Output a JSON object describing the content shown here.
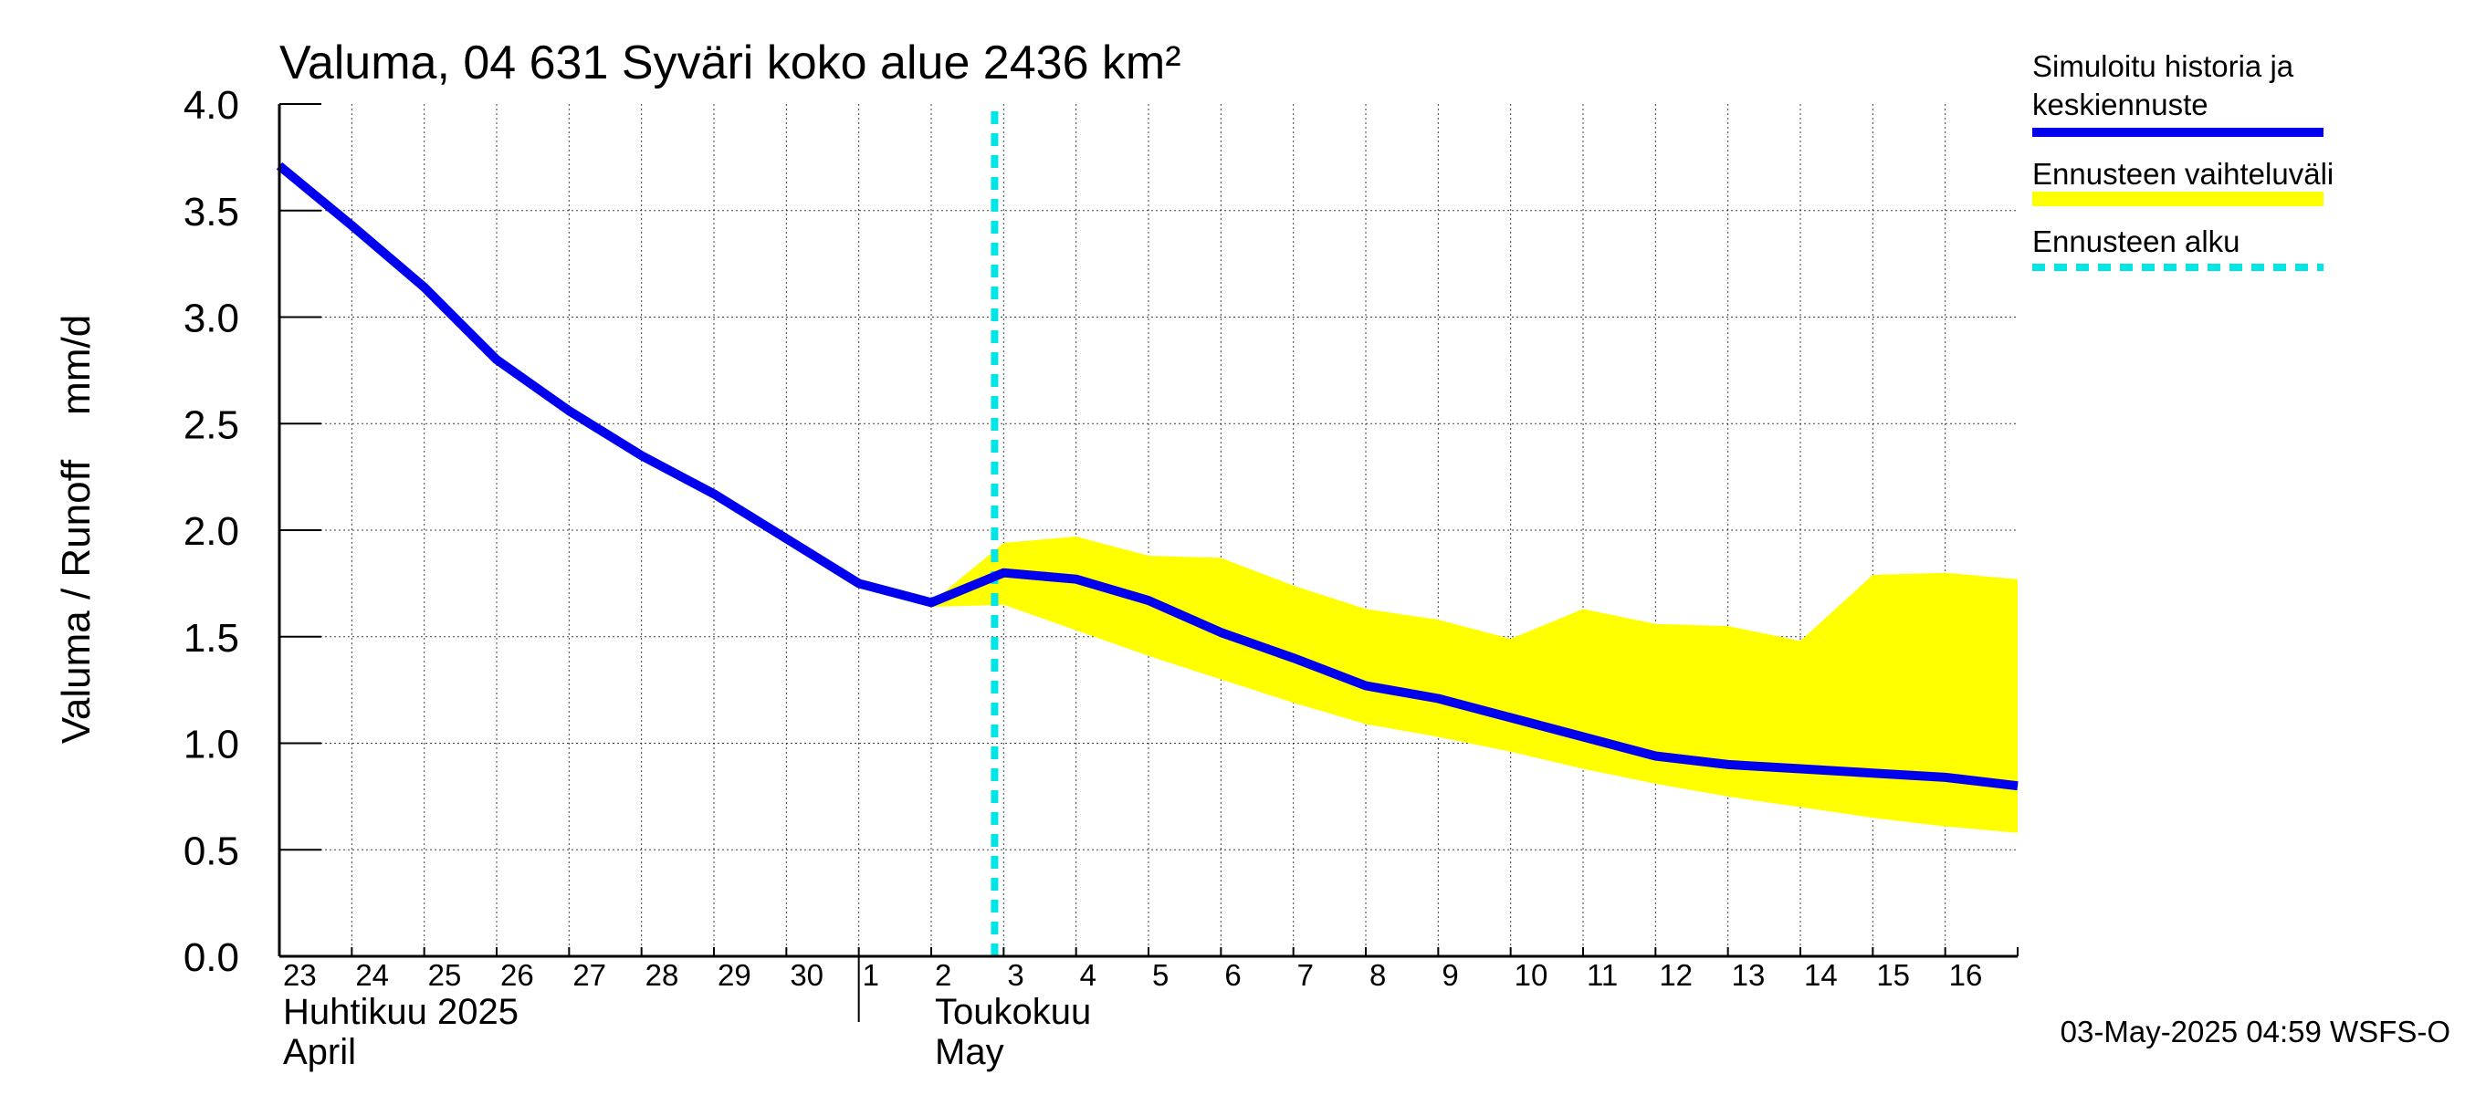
{
  "chart_data": {
    "type": "line",
    "title": "Valuma, 04 631 Syväri koko alue 2436 km²",
    "ylabel": "Valuma / Runoff    mm/d",
    "ylim": [
      0,
      4
    ],
    "yticks": [
      "0.0",
      "0.5",
      "1.0",
      "1.5",
      "2.0",
      "2.5",
      "3.0",
      "3.5",
      "4.0"
    ],
    "xlim": [
      "2025-04-23",
      "2025-05-17"
    ],
    "day_labels": [
      {
        "date": "2025-04-23",
        "label": "23"
      },
      {
        "date": "2025-04-24",
        "label": "24"
      },
      {
        "date": "2025-04-25",
        "label": "25"
      },
      {
        "date": "2025-04-26",
        "label": "26"
      },
      {
        "date": "2025-04-27",
        "label": "27"
      },
      {
        "date": "2025-04-28",
        "label": "28"
      },
      {
        "date": "2025-04-29",
        "label": "29"
      },
      {
        "date": "2025-04-30",
        "label": "30"
      },
      {
        "date": "2025-05-01",
        "label": "1"
      },
      {
        "date": "2025-05-02",
        "label": "2"
      },
      {
        "date": "2025-05-03",
        "label": "3"
      },
      {
        "date": "2025-05-04",
        "label": "4"
      },
      {
        "date": "2025-05-05",
        "label": "5"
      },
      {
        "date": "2025-05-06",
        "label": "6"
      },
      {
        "date": "2025-05-07",
        "label": "7"
      },
      {
        "date": "2025-05-08",
        "label": "8"
      },
      {
        "date": "2025-05-09",
        "label": "9"
      },
      {
        "date": "2025-05-10",
        "label": "10"
      },
      {
        "date": "2025-05-11",
        "label": "11"
      },
      {
        "date": "2025-05-12",
        "label": "12"
      },
      {
        "date": "2025-05-13",
        "label": "13"
      },
      {
        "date": "2025-05-14",
        "label": "14"
      },
      {
        "date": "2025-05-15",
        "label": "15"
      },
      {
        "date": "2025-05-16",
        "label": "16"
      }
    ],
    "month_labels": [
      {
        "date": "2025-04-23",
        "fi": "Huhtikuu  2025",
        "en": "April"
      },
      {
        "date": "2025-05-02",
        "fi": "Toukokuu",
        "en": "May"
      }
    ],
    "month_separator": "2025-05-01",
    "grid": true,
    "legend_position": "right",
    "series": [
      {
        "name": "Simuloitu historia ja keskiennuste",
        "color": "#0000ee",
        "points": [
          [
            "2025-04-23",
            3.71
          ],
          [
            "2025-04-24",
            3.43
          ],
          [
            "2025-04-25",
            3.14
          ],
          [
            "2025-04-26",
            2.8
          ],
          [
            "2025-04-27",
            2.56
          ],
          [
            "2025-04-28",
            2.35
          ],
          [
            "2025-04-29",
            2.17
          ],
          [
            "2025-04-30",
            1.96
          ],
          [
            "2025-05-01",
            1.75
          ],
          [
            "2025-05-02",
            1.66
          ],
          [
            "2025-05-03",
            1.8
          ],
          [
            "2025-05-04",
            1.77
          ],
          [
            "2025-05-05",
            1.67
          ],
          [
            "2025-05-06",
            1.52
          ],
          [
            "2025-05-07",
            1.4
          ],
          [
            "2025-05-08",
            1.27
          ],
          [
            "2025-05-09",
            1.21
          ],
          [
            "2025-05-10",
            1.12
          ],
          [
            "2025-05-11",
            1.03
          ],
          [
            "2025-05-12",
            0.94
          ],
          [
            "2025-05-13",
            0.9
          ],
          [
            "2025-05-14",
            0.88
          ],
          [
            "2025-05-15",
            0.86
          ],
          [
            "2025-05-16",
            0.84
          ],
          [
            "2025-05-17",
            0.8
          ]
        ]
      },
      {
        "name": "Ennusteen vaihteluväli",
        "color": "#ffff00",
        "band": [
          [
            "2025-05-02",
            1.64,
            1.66
          ],
          [
            "2025-05-03",
            1.65,
            1.94
          ],
          [
            "2025-05-04",
            1.53,
            1.97
          ],
          [
            "2025-05-05",
            1.41,
            1.88
          ],
          [
            "2025-05-06",
            1.3,
            1.87
          ],
          [
            "2025-05-07",
            1.19,
            1.74
          ],
          [
            "2025-05-08",
            1.09,
            1.63
          ],
          [
            "2025-05-09",
            1.03,
            1.58
          ],
          [
            "2025-05-10",
            0.96,
            1.49
          ],
          [
            "2025-05-11",
            0.88,
            1.63
          ],
          [
            "2025-05-12",
            0.81,
            1.56
          ],
          [
            "2025-05-13",
            0.75,
            1.55
          ],
          [
            "2025-05-14",
            0.7,
            1.48
          ],
          [
            "2025-05-15",
            0.65,
            1.79
          ],
          [
            "2025-05-16",
            0.61,
            1.8
          ],
          [
            "2025-05-17",
            0.58,
            1.77
          ]
        ]
      },
      {
        "name": "Ennusteen alku",
        "color": "#00e5e5",
        "vline": "2025-05-02T21:00"
      }
    ],
    "legend": [
      {
        "label": "Simuloitu historia ja keskiennuste",
        "lines": [
          "Simuloitu historia ja",
          "keskiennuste"
        ],
        "color": "#0000ee",
        "style": "solid"
      },
      {
        "label": "Ennusteen vaihteluväli",
        "lines": [
          "Ennusteen vaihteluväli"
        ],
        "color": "#ffff00",
        "style": "band"
      },
      {
        "label": "Ennusteen alku",
        "lines": [
          "Ennusteen alku"
        ],
        "color": "#00e5e5",
        "style": "dashed"
      }
    ],
    "footer": "03-May-2025 04:59 WSFS-O"
  }
}
